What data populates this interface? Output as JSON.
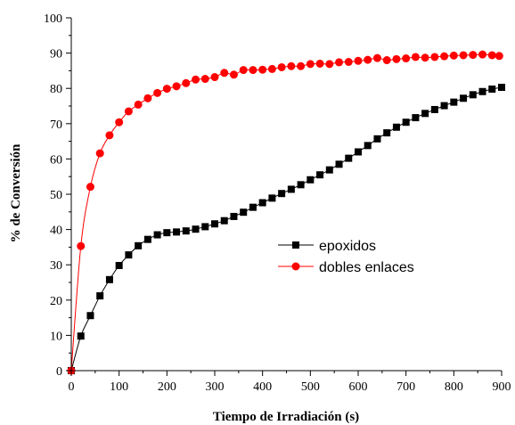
{
  "chart_data": {
    "type": "line",
    "title": "",
    "xlabel": "Tiempo de Irradiación (s)",
    "ylabel": "% de Conversión",
    "xlim": [
      0,
      900
    ],
    "ylim": [
      0,
      100
    ],
    "xticks": [
      0,
      100,
      200,
      300,
      400,
      500,
      600,
      700,
      800,
      900
    ],
    "yticks": [
      0,
      10,
      20,
      30,
      40,
      50,
      60,
      70,
      80,
      90,
      100
    ],
    "grid": false,
    "legend_position": "center-right",
    "series": [
      {
        "name": "epoxidos",
        "marker": "square",
        "color": "#000000",
        "points": [
          [
            0,
            0
          ],
          [
            20,
            9.8
          ],
          [
            40,
            15.6
          ],
          [
            60,
            21.2
          ],
          [
            80,
            25.8
          ],
          [
            100,
            29.8
          ],
          [
            120,
            32.8
          ],
          [
            140,
            35.4
          ],
          [
            160,
            37.2
          ],
          [
            180,
            38.5
          ],
          [
            200,
            39.1
          ],
          [
            220,
            39.3
          ],
          [
            240,
            39.6
          ],
          [
            260,
            40.1
          ],
          [
            280,
            40.8
          ],
          [
            300,
            41.6
          ],
          [
            320,
            42.5
          ],
          [
            340,
            43.7
          ],
          [
            360,
            44.9
          ],
          [
            380,
            46.3
          ],
          [
            400,
            47.6
          ],
          [
            420,
            48.9
          ],
          [
            440,
            50.2
          ],
          [
            460,
            51.4
          ],
          [
            480,
            52.7
          ],
          [
            500,
            54.1
          ],
          [
            520,
            55.5
          ],
          [
            540,
            56.9
          ],
          [
            560,
            58.5
          ],
          [
            580,
            60.2
          ],
          [
            600,
            62.0
          ],
          [
            620,
            63.8
          ],
          [
            640,
            65.7
          ],
          [
            660,
            67.4
          ],
          [
            680,
            69.0
          ],
          [
            700,
            70.4
          ],
          [
            720,
            71.7
          ],
          [
            740,
            72.9
          ],
          [
            760,
            74.0
          ],
          [
            780,
            75.1
          ],
          [
            800,
            76.1
          ],
          [
            820,
            77.2
          ],
          [
            840,
            78.2
          ],
          [
            860,
            79.1
          ],
          [
            880,
            79.8
          ],
          [
            900,
            80.3
          ]
        ]
      },
      {
        "name": "dobles enlaces",
        "marker": "circle",
        "color": "#ff0000",
        "points": [
          [
            0,
            0
          ],
          [
            20,
            35.3
          ],
          [
            40,
            52.1
          ],
          [
            60,
            61.6
          ],
          [
            80,
            66.7
          ],
          [
            100,
            70.4
          ],
          [
            120,
            73.5
          ],
          [
            140,
            75.4
          ],
          [
            160,
            77.2
          ],
          [
            180,
            78.7
          ],
          [
            200,
            79.9
          ],
          [
            220,
            80.6
          ],
          [
            240,
            81.5
          ],
          [
            260,
            82.5
          ],
          [
            280,
            82.7
          ],
          [
            300,
            83.2
          ],
          [
            320,
            84.4
          ],
          [
            340,
            83.9
          ],
          [
            360,
            85.2
          ],
          [
            380,
            85.2
          ],
          [
            400,
            85.3
          ],
          [
            420,
            85.5
          ],
          [
            440,
            86.0
          ],
          [
            460,
            86.3
          ],
          [
            480,
            86.3
          ],
          [
            500,
            86.9
          ],
          [
            520,
            87.0
          ],
          [
            540,
            86.9
          ],
          [
            560,
            87.4
          ],
          [
            580,
            87.5
          ],
          [
            600,
            87.8
          ],
          [
            620,
            88.1
          ],
          [
            640,
            88.6
          ],
          [
            660,
            88.0
          ],
          [
            680,
            88.3
          ],
          [
            700,
            88.5
          ],
          [
            720,
            88.9
          ],
          [
            740,
            88.7
          ],
          [
            760,
            88.9
          ],
          [
            780,
            89.1
          ],
          [
            800,
            89.3
          ],
          [
            820,
            89.4
          ],
          [
            840,
            89.5
          ],
          [
            860,
            89.6
          ],
          [
            880,
            89.4
          ],
          [
            895,
            89.2
          ]
        ]
      }
    ]
  }
}
